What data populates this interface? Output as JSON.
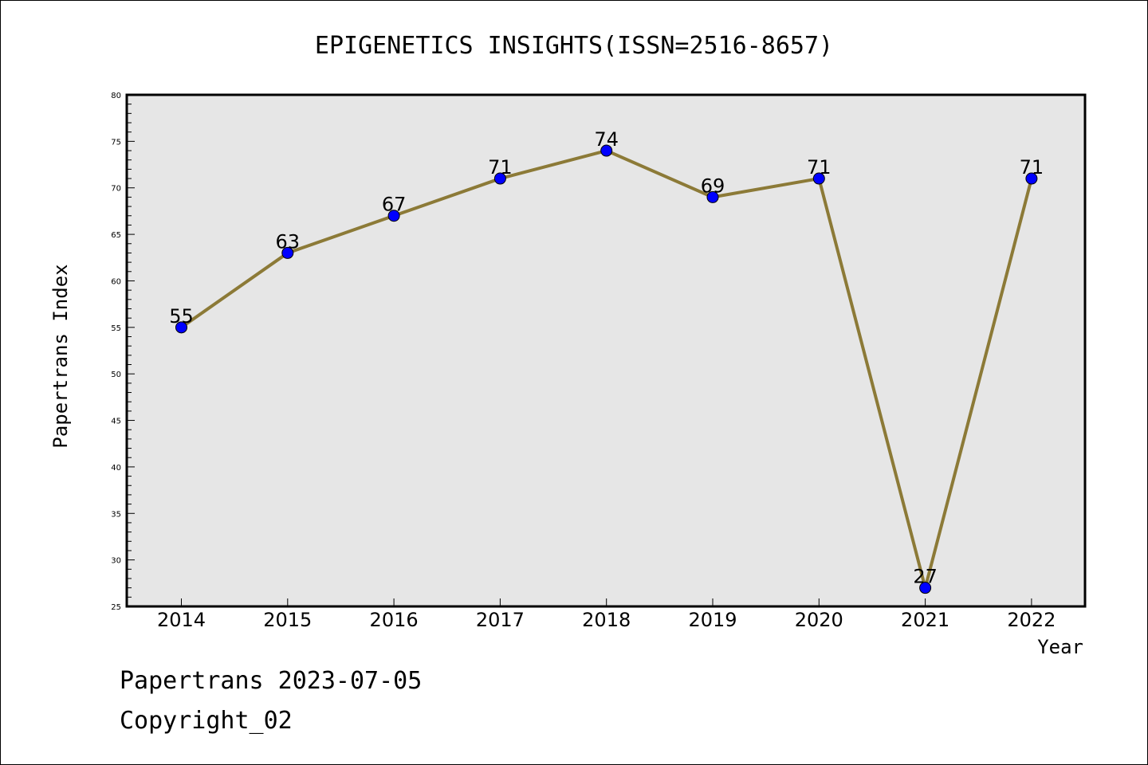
{
  "chart_data": {
    "type": "line",
    "title": "EPIGENETICS INSIGHTS(ISSN=2516-8657)",
    "xlabel": "Year",
    "ylabel": "Papertrans Index",
    "categories": [
      "2014",
      "2015",
      "2016",
      "2017",
      "2018",
      "2019",
      "2020",
      "2021",
      "2022"
    ],
    "series": [
      {
        "values": [
          55,
          63,
          67,
          71,
          74,
          69,
          71,
          27,
          71
        ]
      }
    ],
    "ylim": [
      25,
      80
    ],
    "ytick_step": 5,
    "yminor_step": 1,
    "grid": false,
    "show_data_labels": true,
    "plot_background": "#e6e6e6",
    "line_color": "#8c7a37",
    "marker_color": "#0000ff"
  },
  "footer": {
    "line1": "Papertrans 2023-07-05",
    "line2": "Copyright_02"
  }
}
